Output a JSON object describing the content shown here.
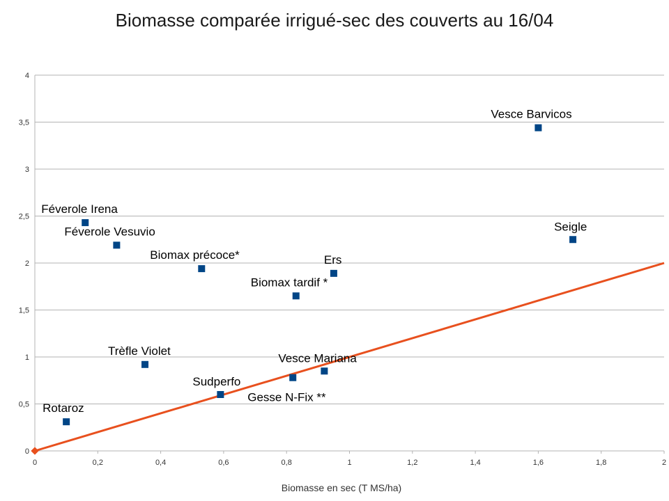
{
  "chart_data": {
    "type": "scatter",
    "title": "Biomasse comparée irrigué-sec des couverts au 16/04",
    "xlabel": "Biomasse en sec (T MS/ha)",
    "ylabel": "",
    "xlim": [
      0,
      2
    ],
    "ylim": [
      0,
      4
    ],
    "x_ticks": [
      "0",
      "0,2",
      "0,4",
      "0,6",
      "0,8",
      "1",
      "1,2",
      "1,4",
      "1,6",
      "1,8",
      "2"
    ],
    "y_ticks": [
      "0",
      "0,5",
      "1",
      "1,5",
      "2",
      "2,5",
      "3",
      "3,5",
      "4"
    ],
    "grid": "horizontal",
    "points": [
      {
        "label": "Vesce Barvicos",
        "x": 1.6,
        "y": 3.44
      },
      {
        "label": "Seigle",
        "x": 1.71,
        "y": 2.25
      },
      {
        "label": "Féverole Irena",
        "x": 0.16,
        "y": 2.43
      },
      {
        "label": "Féverole Vesuvio",
        "x": 0.26,
        "y": 2.19
      },
      {
        "label": "Biomax précoce*",
        "x": 0.53,
        "y": 1.94
      },
      {
        "label": "Ers",
        "x": 0.95,
        "y": 1.89
      },
      {
        "label": "Biomax tardif *",
        "x": 0.83,
        "y": 1.65
      },
      {
        "label": "Trèfle Violet",
        "x": 0.35,
        "y": 0.92
      },
      {
        "label": "Vesce Mariana",
        "x": 0.92,
        "y": 0.85
      },
      {
        "label": "Gesse N-Fix **",
        "x": 0.82,
        "y": 0.78
      },
      {
        "label": "Sudperfo",
        "x": 0.59,
        "y": 0.6
      },
      {
        "label": "Rotaroz",
        "x": 0.1,
        "y": 0.31
      }
    ],
    "reference_line": {
      "x1": 0,
      "y1": 0,
      "x2": 2,
      "y2": 2
    },
    "marker_color": "#004586",
    "line_color": "#e8501e",
    "grid_color": "#b3b3b3",
    "axis_color": "#b3b3b3"
  }
}
